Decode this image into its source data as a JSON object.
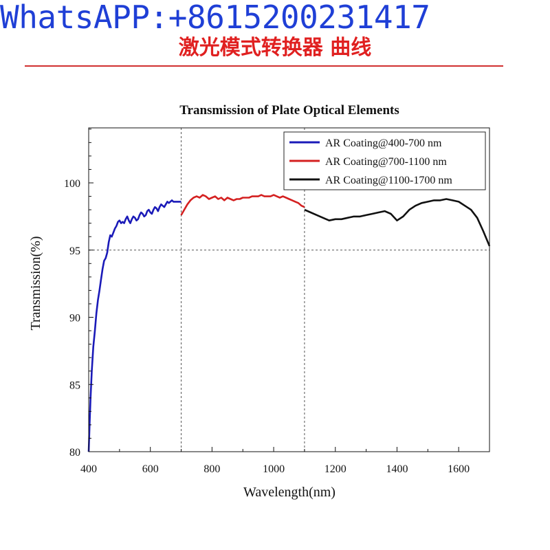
{
  "watermark": "WhatsAPP:+8615200231417",
  "banner": {
    "title": "激光模式转换器 曲线",
    "accent_color": "#e02020"
  },
  "chart_data": {
    "type": "line",
    "title": "Transmission of Plate Optical Elements",
    "xlabel": "Wavelength(nm)",
    "ylabel": "Transmission(%)",
    "xlim": [
      400,
      1700
    ],
    "ylim": [
      80,
      104
    ],
    "xticks": [
      400,
      600,
      800,
      1000,
      1200,
      1400,
      1600
    ],
    "yticks": [
      80,
      85,
      90,
      95,
      100
    ],
    "reference_lines": {
      "x": [
        700,
        1100
      ],
      "y": [
        95
      ]
    },
    "grid": false,
    "legend_position": "top-right",
    "series": [
      {
        "name": "AR Coating@400-700 nm",
        "color": "#1a1ab8",
        "x": [
          400,
          403,
          406,
          410,
          415,
          420,
          425,
          430,
          435,
          440,
          445,
          450,
          455,
          460,
          465,
          470,
          475,
          480,
          485,
          490,
          495,
          500,
          505,
          510,
          515,
          520,
          525,
          530,
          535,
          540,
          545,
          550,
          555,
          560,
          565,
          570,
          575,
          580,
          585,
          590,
          595,
          600,
          605,
          610,
          615,
          620,
          625,
          630,
          635,
          640,
          645,
          650,
          655,
          660,
          665,
          670,
          675,
          680,
          685,
          690,
          695,
          700
        ],
        "y": [
          80.0,
          82.0,
          84.0,
          86.0,
          87.8,
          89.0,
          90.3,
          91.3,
          92.0,
          92.8,
          93.6,
          94.2,
          94.4,
          94.8,
          95.6,
          96.1,
          96.0,
          96.3,
          96.6,
          96.8,
          97.1,
          97.2,
          97.0,
          97.1,
          97.0,
          97.3,
          97.5,
          97.2,
          97.0,
          97.3,
          97.5,
          97.4,
          97.2,
          97.3,
          97.6,
          97.8,
          97.7,
          97.5,
          97.6,
          97.9,
          98.0,
          97.8,
          97.7,
          98.0,
          98.2,
          98.1,
          97.9,
          98.2,
          98.4,
          98.3,
          98.2,
          98.4,
          98.6,
          98.5,
          98.6,
          98.7,
          98.6,
          98.6,
          98.6,
          98.6,
          98.6,
          98.6
        ]
      },
      {
        "name": "AR Coating@700-1100 nm",
        "color": "#d42020",
        "x": [
          700,
          710,
          720,
          730,
          740,
          750,
          760,
          770,
          780,
          790,
          800,
          810,
          820,
          830,
          840,
          850,
          860,
          870,
          880,
          890,
          900,
          910,
          920,
          930,
          940,
          950,
          960,
          970,
          980,
          990,
          1000,
          1010,
          1020,
          1030,
          1040,
          1050,
          1060,
          1070,
          1080,
          1090,
          1100
        ],
        "y": [
          97.6,
          98.0,
          98.4,
          98.7,
          98.9,
          99.0,
          98.9,
          99.1,
          99.0,
          98.8,
          98.9,
          99.0,
          98.8,
          98.9,
          98.7,
          98.9,
          98.8,
          98.7,
          98.8,
          98.8,
          98.9,
          98.9,
          98.9,
          99.0,
          99.0,
          99.0,
          99.1,
          99.0,
          99.0,
          99.0,
          99.1,
          99.0,
          98.9,
          99.0,
          98.9,
          98.8,
          98.7,
          98.6,
          98.5,
          98.3,
          98.2
        ]
      },
      {
        "name": "AR Coating@1100-1700 nm",
        "color": "#111111",
        "x": [
          1100,
          1120,
          1140,
          1160,
          1180,
          1200,
          1220,
          1240,
          1260,
          1280,
          1300,
          1320,
          1340,
          1360,
          1380,
          1400,
          1420,
          1440,
          1460,
          1480,
          1500,
          1520,
          1540,
          1560,
          1580,
          1600,
          1620,
          1640,
          1660,
          1680,
          1700
        ],
        "y": [
          98.0,
          97.8,
          97.6,
          97.4,
          97.2,
          97.3,
          97.3,
          97.4,
          97.5,
          97.5,
          97.6,
          97.7,
          97.8,
          97.9,
          97.7,
          97.2,
          97.5,
          98.0,
          98.3,
          98.5,
          98.6,
          98.7,
          98.7,
          98.8,
          98.7,
          98.6,
          98.3,
          98.0,
          97.4,
          96.4,
          95.3
        ]
      }
    ]
  }
}
